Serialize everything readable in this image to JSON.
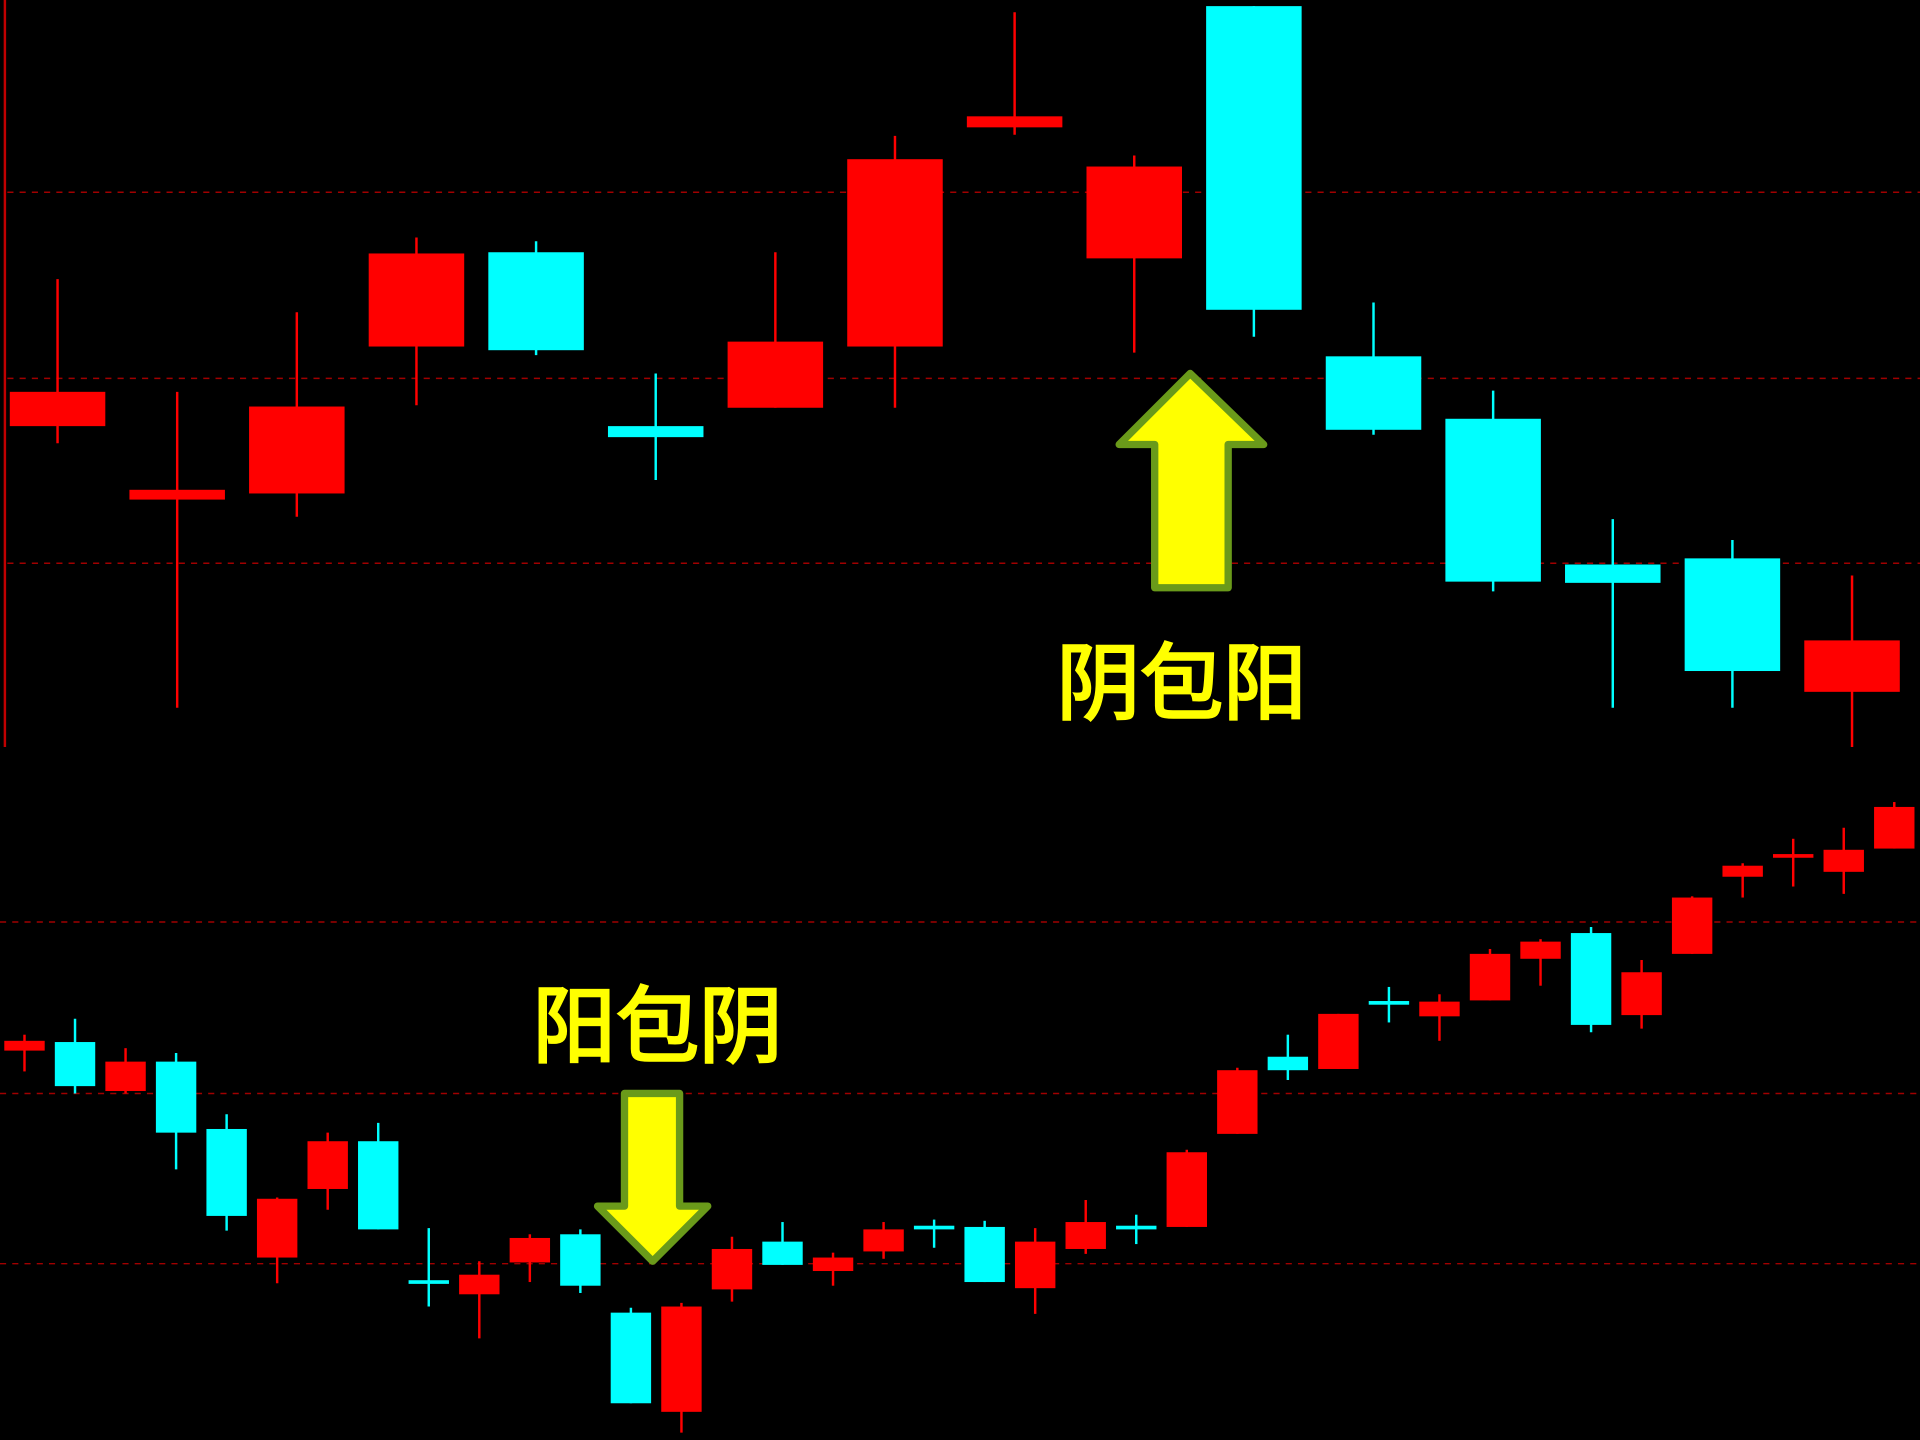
{
  "chart_data": [
    {
      "type": "candlestick",
      "up_color": "#ff0000",
      "down_color": "#00ffff",
      "annotation": "阴包阳",
      "open": [
        262,
        202,
        207,
        327,
        404,
        262,
        277,
        327,
        506,
        399,
        605,
        319,
        268,
        149,
        154,
        45
      ],
      "high": [
        382,
        290,
        355,
        416,
        413,
        305,
        404,
        499,
        600,
        483,
        605,
        363,
        291,
        186,
        169,
        140
      ],
      "low": [
        248,
        32,
        188,
        279,
        320,
        218,
        277,
        277,
        500,
        322,
        335,
        255,
        127,
        32,
        32,
        0
      ],
      "close": [
        290,
        210,
        278,
        403,
        324,
        253,
        331,
        480,
        515,
        474,
        357,
        259,
        135,
        134,
        62,
        87
      ]
    },
    {
      "type": "candlestick",
      "up_color": "#ff0000",
      "down_color": "#00ffff",
      "annotation": "阳包阴",
      "open": [
        318,
        325,
        285,
        309,
        254,
        149,
        205,
        244,
        130,
        119,
        145,
        168,
        104,
        23,
        123,
        162,
        138,
        154,
        175,
        174,
        124,
        156,
        175,
        174,
        250,
        313,
        303,
        358,
        346,
        359,
        393,
        414,
        347,
        397,
        460,
        476,
        464,
        483
      ],
      "high": [
        331,
        344,
        320,
        316,
        266,
        198,
        251,
        259,
        173,
        146,
        168,
        172,
        108,
        112,
        166,
        178,
        153,
        178,
        180,
        179,
        173,
        196,
        184,
        237,
        304,
        331,
        348,
        370,
        364,
        401,
        409,
        419,
        392,
        444,
        471,
        491,
        500,
        521
      ],
      "low": [
        301,
        283,
        283,
        221,
        171,
        128,
        188,
        172,
        109,
        83,
        129,
        120,
        30,
        6,
        113,
        143,
        126,
        148,
        157,
        129,
        103,
        152,
        160,
        174,
        250,
        294,
        303,
        341,
        326,
        359,
        371,
        333,
        336,
        397,
        443,
        452,
        446,
        483
      ],
      "close": [
        326,
        289,
        309,
        251,
        183,
        197,
        244,
        172,
        128,
        135,
        165,
        126,
        30,
        109,
        156,
        143,
        149,
        172,
        172,
        129,
        162,
        178,
        172,
        235,
        302,
        302,
        348,
        356,
        358,
        397,
        407,
        339,
        382,
        443,
        469,
        478,
        482,
        517
      ]
    }
  ]
}
